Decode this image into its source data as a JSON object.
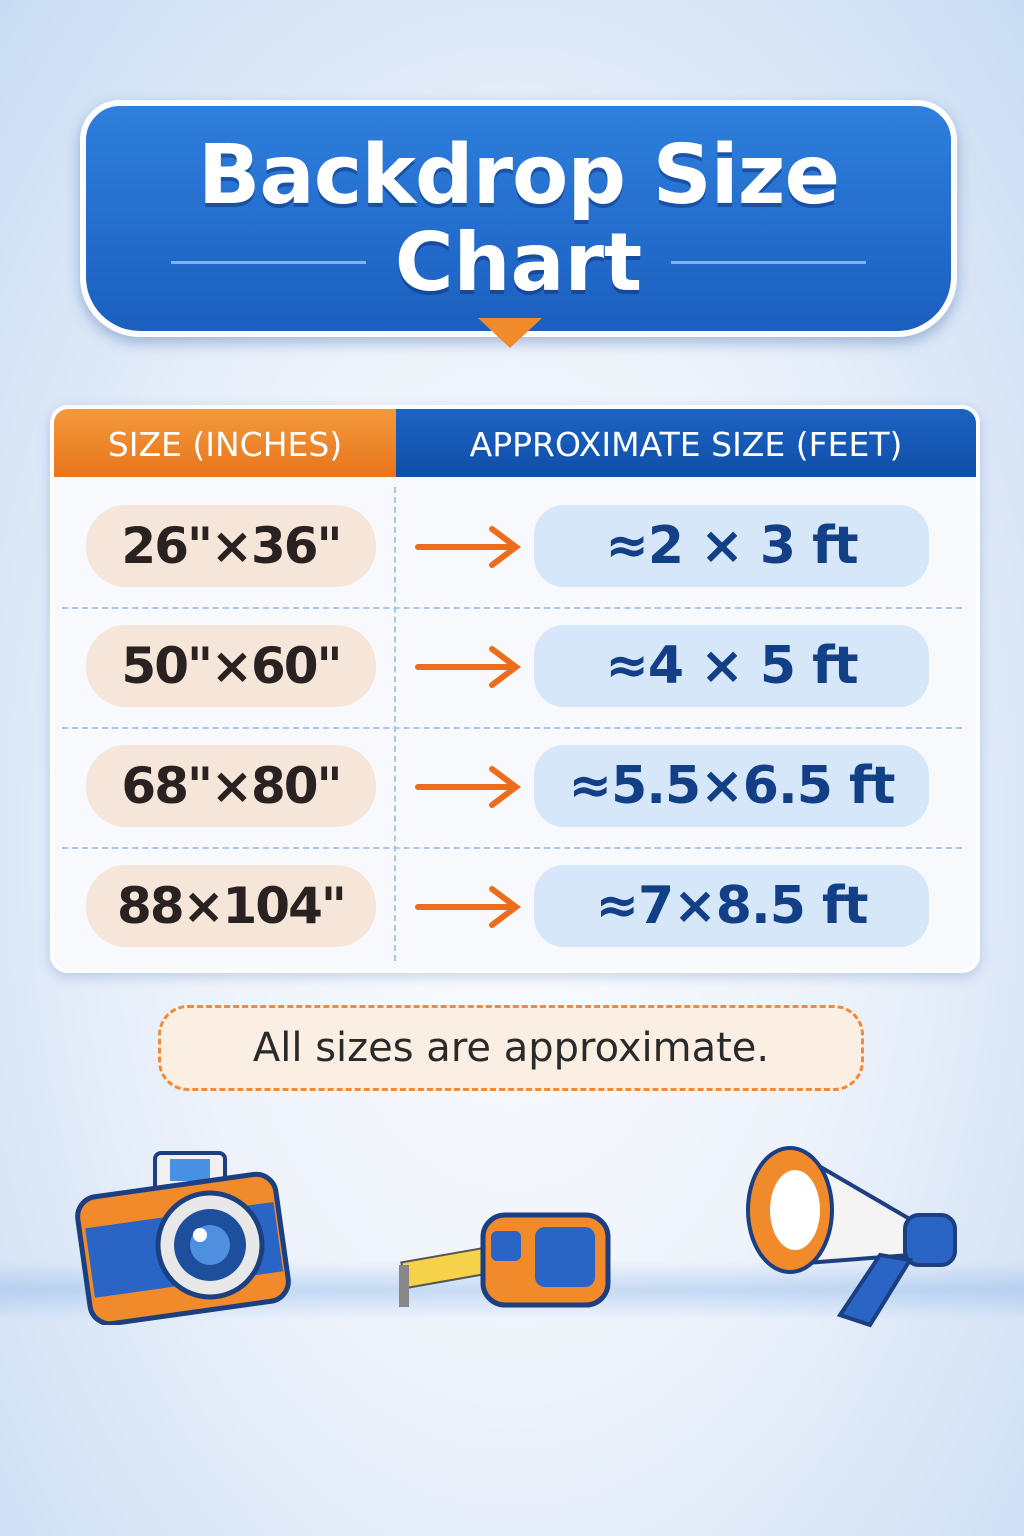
{
  "title": {
    "line1": "Backdrop Size",
    "line2": "Chart"
  },
  "table": {
    "headers": [
      "SIZE (INCHES)",
      "APPROXIMATE SIZE (FEET)"
    ],
    "rows": [
      {
        "inches": "26\"×36\"",
        "feet": "≈2 × 3 ft"
      },
      {
        "inches": "50\"×60\"",
        "feet": "≈4 × 5 ft"
      },
      {
        "inches": "68\"×80\"",
        "feet": "≈5.5×6.5 ft"
      },
      {
        "inches": "88×104\"",
        "feet": "≈7×8.5 ft"
      }
    ]
  },
  "note": "All sizes are approximate.",
  "colors": {
    "primary_blue": "#1b5fbf",
    "accent_orange": "#e8741c",
    "feet_text": "#123f86"
  },
  "illustrations": [
    "camera-icon",
    "tape-measure-icon",
    "megaphone-icon"
  ]
}
